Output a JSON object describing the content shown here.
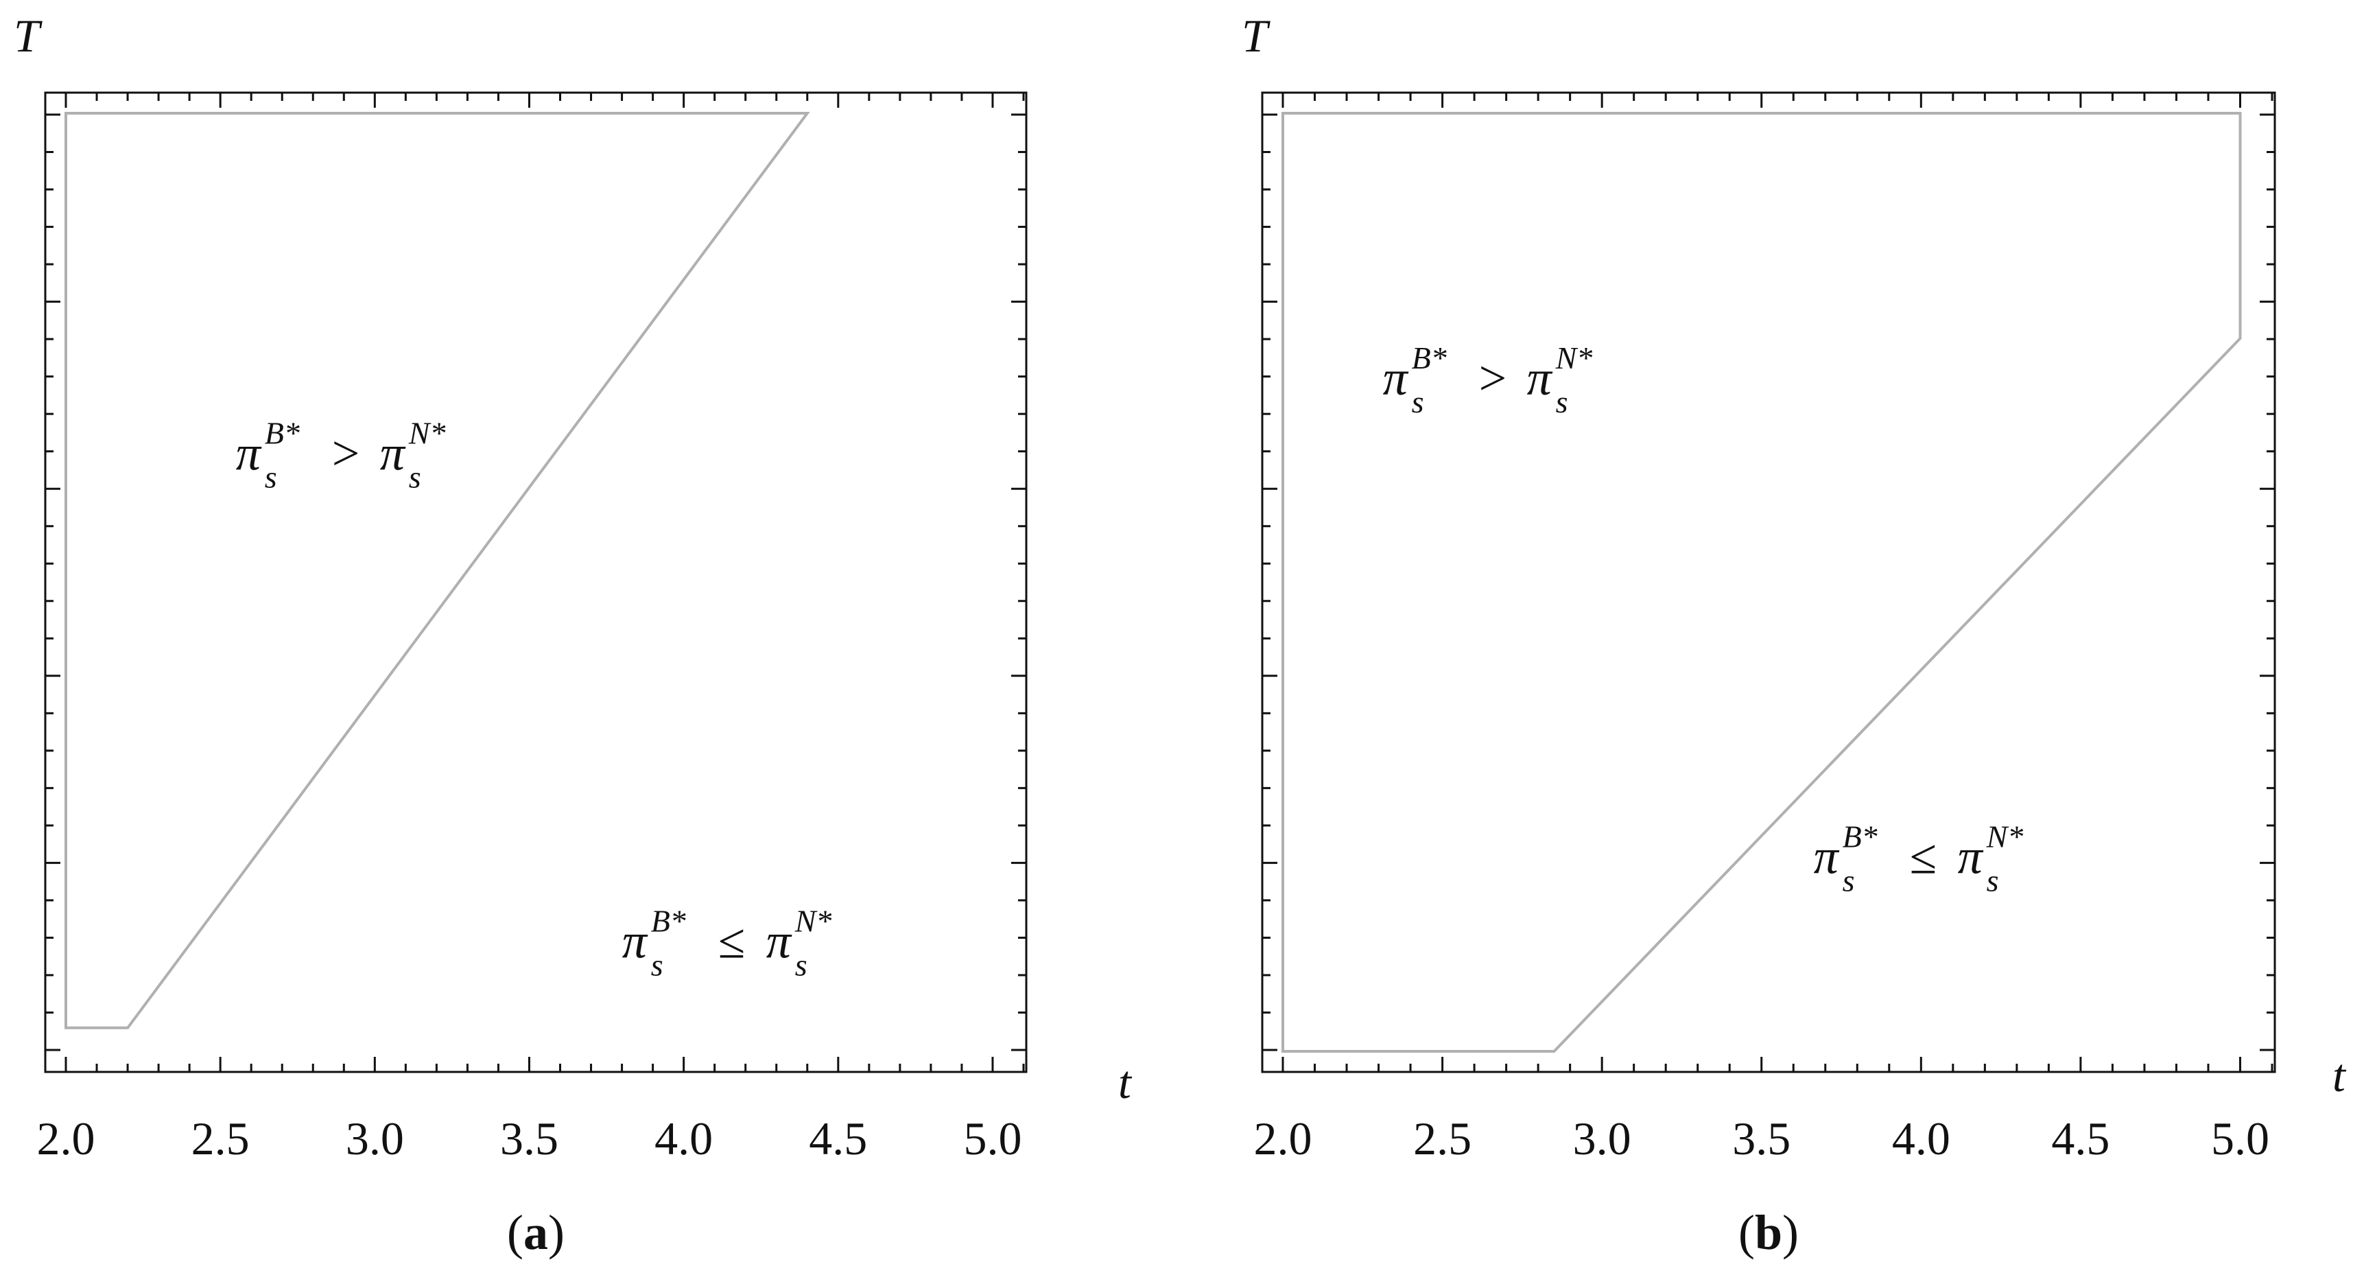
{
  "colors": {
    "frame": "#111111",
    "region_boundary": "#b0b0b0",
    "text": "#111111"
  },
  "chart_data": [
    {
      "type": "area",
      "caption_letter": "a",
      "xlabel": "t",
      "ylabel": "T",
      "xlim": [
        2.0,
        5.1
      ],
      "x_ticks": [
        "2.0",
        "2.5",
        "3.0",
        "3.5",
        "4.0",
        "4.5",
        "5.0"
      ],
      "y_ticks_labeled": false,
      "ylim": [
        0,
        1
      ],
      "boundary_polygon": [
        [
          2.0,
          0.025
        ],
        [
          2.0,
          1.0
        ],
        [
          4.4,
          1.0
        ],
        [
          2.2,
          0.025
        ]
      ],
      "regions": [
        {
          "label": {
            "lhs_base": "π",
            "lhs_sub": "s",
            "lhs_sup": "B*",
            "op": ">",
            "rhs_base": "π",
            "rhs_sub": "s",
            "rhs_sup": "N*"
          },
          "at": [
            2.95,
            0.62
          ]
        },
        {
          "label": {
            "lhs_base": "π",
            "lhs_sub": "s",
            "lhs_sup": "B*",
            "op": "≤",
            "rhs_base": "π",
            "rhs_sub": "s",
            "rhs_sup": "N*"
          },
          "at": [
            4.2,
            0.1
          ]
        }
      ]
    },
    {
      "type": "area",
      "caption_letter": "b",
      "xlabel": "t",
      "ylabel": "T",
      "xlim": [
        2.0,
        5.1
      ],
      "x_ticks": [
        "2.0",
        "2.5",
        "3.0",
        "3.5",
        "4.0",
        "4.5",
        "5.0"
      ],
      "y_ticks_labeled": false,
      "ylim": [
        0,
        1
      ],
      "boundary_polygon": [
        [
          2.0,
          0.0
        ],
        [
          2.0,
          1.0
        ],
        [
          5.0,
          1.0
        ],
        [
          5.0,
          0.76
        ],
        [
          2.85,
          0.0
        ]
      ],
      "regions": [
        {
          "label": {
            "lhs_base": "π",
            "lhs_sub": "s",
            "lhs_sup": "B*",
            "op": ">",
            "rhs_base": "π",
            "rhs_sub": "s",
            "rhs_sup": "N*"
          },
          "at": [
            2.7,
            0.7
          ]
        },
        {
          "label": {
            "lhs_base": "π",
            "lhs_sub": "s",
            "lhs_sup": "B*",
            "op": "≤",
            "rhs_base": "π",
            "rhs_sub": "s",
            "rhs_sup": "N*"
          },
          "at": [
            4.05,
            0.19
          ]
        }
      ]
    }
  ]
}
